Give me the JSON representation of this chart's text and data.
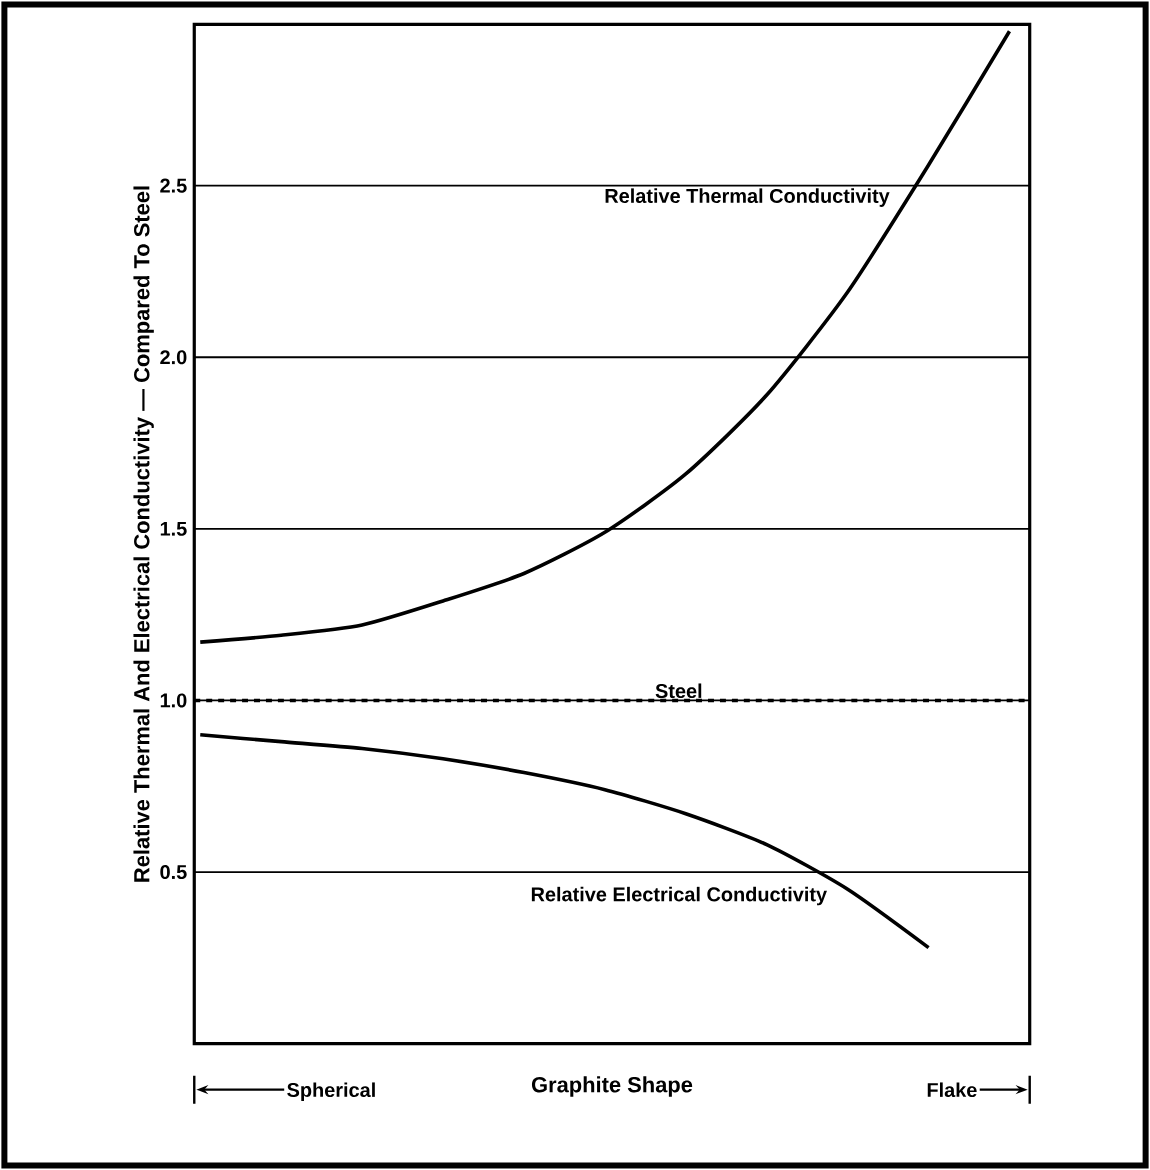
{
  "chart_data": {
    "type": "line",
    "xlabel": "Graphite Shape",
    "ylabel": "Relative Thermal And Electrical Conductivity — Compared To Steel",
    "categories": [
      null,
      null,
      null,
      null,
      null,
      null,
      null,
      null,
      null,
      null,
      null
    ],
    "ylim": [
      0,
      2.97
    ],
    "yticks": [
      0.5,
      {
        "value": 1,
        "label": "1.0"
      },
      1.5,
      {
        "value": 2,
        "label": "2.0"
      },
      2.5
    ],
    "grid": "y",
    "legend": false,
    "marker": "none",
    "line_style": "solid",
    "annotations": [
      "Spherical",
      "Flake"
    ],
    "ref_lines": [
      {
        "axis": "y",
        "value": 1,
        "label": "Steel",
        "line_style": "dashed",
        "color": "#000000"
      }
    ],
    "series": [
      {
        "name": "Relative Thermal Conductivity",
        "color": "#000000",
        "values": [
          1.17,
          1.19,
          1.22,
          1.29,
          1.37,
          1.49,
          1.66,
          1.89,
          2.19,
          2.56,
          2.95
        ]
      },
      {
        "name": "Relative Electrical Conductivity",
        "color": "#000000",
        "values": [
          0.9,
          0.88,
          0.86,
          0.83,
          0.79,
          0.74,
          0.67,
          0.58,
          0.45,
          0.28,
          null
        ]
      }
    ]
  }
}
